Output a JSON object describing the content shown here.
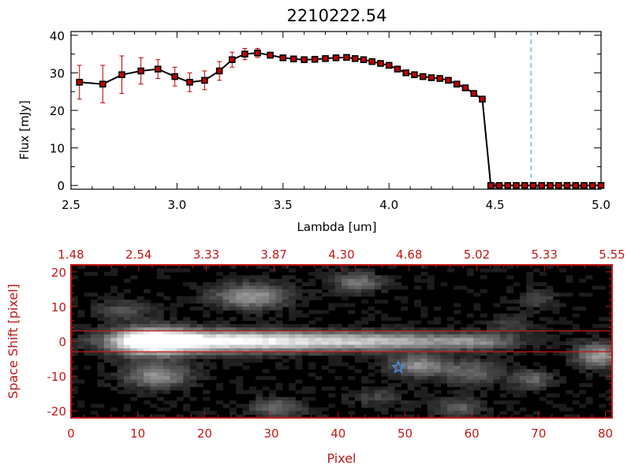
{
  "chart_data": [
    {
      "type": "line",
      "title": "2210222.54",
      "xlabel": "Lambda [um]",
      "ylabel": "Flux [mJy]",
      "xlim": [
        2.5,
        5.0
      ],
      "ylim": [
        -1,
        41
      ],
      "x_ticks": [
        "2.5",
        "3.0",
        "3.5",
        "4.0",
        "4.5",
        "5.0"
      ],
      "y_ticks": [
        "0",
        "10",
        "20",
        "30",
        "40"
      ],
      "grid": false,
      "colors": {
        "line": "#000000",
        "marker": "#c00000",
        "error": "#c00000",
        "cutoff": "#5fa8d3"
      },
      "cutoff_line_x": 4.67,
      "series": [
        {
          "x": [
            2.54,
            2.65,
            2.74,
            2.83,
            2.91,
            2.99,
            3.06,
            3.13,
            3.2,
            3.26,
            3.32,
            3.38,
            3.44,
            3.5,
            3.55,
            3.6,
            3.65,
            3.7,
            3.75,
            3.8,
            3.84,
            3.88,
            3.92,
            3.96,
            4.0,
            4.04,
            4.08,
            4.12,
            4.16,
            4.2,
            4.24,
            4.28,
            4.32,
            4.36,
            4.4,
            4.44,
            4.48,
            4.52,
            4.56,
            4.6,
            4.64,
            4.68,
            4.72,
            4.76,
            4.8,
            4.84,
            4.88,
            4.92,
            4.96,
            5.0
          ],
          "y": [
            27.5,
            27.0,
            29.5,
            30.5,
            31.0,
            29.0,
            27.5,
            28.0,
            30.5,
            33.5,
            35.0,
            35.3,
            34.7,
            34.0,
            33.7,
            33.5,
            33.6,
            33.8,
            34.0,
            34.1,
            33.8,
            33.5,
            33.0,
            32.5,
            32.0,
            31.0,
            30.0,
            29.5,
            29.0,
            28.7,
            28.5,
            28.0,
            27.0,
            26.0,
            24.5,
            23.0,
            0,
            0,
            0,
            0,
            0,
            0,
            0,
            0,
            0,
            0,
            0,
            0,
            0,
            0
          ],
          "err": [
            4.5,
            5.0,
            5.0,
            3.5,
            2.5,
            2.5,
            2.5,
            2.5,
            2.5,
            2.0,
            1.5,
            1.2,
            0.8,
            0.6,
            0.5,
            0.5,
            0.5,
            0.5,
            0.5,
            0.5,
            0.5,
            0.5,
            0.5,
            0.5,
            0.5,
            0.5,
            0.5,
            0.5,
            0.5,
            0.5,
            0.5,
            0.5,
            0.5,
            0.5,
            0.6,
            0.6,
            0,
            0,
            0,
            0,
            0,
            0,
            0,
            0,
            0,
            0,
            0,
            0,
            0,
            0
          ]
        }
      ]
    },
    {
      "type": "heatmap",
      "xlabel": "Pixel",
      "ylabel": "Space Shift [pixel]",
      "xlim": [
        0,
        81
      ],
      "ylim": [
        -22,
        22
      ],
      "x_ticks": [
        "0",
        "10",
        "20",
        "30",
        "40",
        "50",
        "60",
        "70",
        "80"
      ],
      "y_ticks": [
        "20",
        "10",
        "0",
        "-10",
        "-20"
      ],
      "top_ticks": [
        "1.48",
        "2.54",
        "3.33",
        "3.87",
        "4.30",
        "4.68",
        "5.02",
        "5.33",
        "5.55"
      ],
      "extraction_band": [
        -3,
        3
      ],
      "star_marker": {
        "x": 49,
        "y": -7.5
      },
      "colors": {
        "axes": "#c01818",
        "band": "#c01818",
        "star": "#4a90e2"
      },
      "blobs": [
        {
          "x": 12,
          "y": 0,
          "sx": 4,
          "sy": 2.6,
          "v": 1.0
        },
        {
          "x": 20,
          "y": 0,
          "sx": 9,
          "sy": 2.3,
          "v": 0.7
        },
        {
          "x": 35,
          "y": 0,
          "sx": 11,
          "sy": 2.0,
          "v": 0.55
        },
        {
          "x": 50,
          "y": 0,
          "sx": 9,
          "sy": 1.8,
          "v": 0.4
        },
        {
          "x": 61,
          "y": 0,
          "sx": 4,
          "sy": 1.6,
          "v": 0.3
        },
        {
          "x": 27,
          "y": 13,
          "sx": 4,
          "sy": 2.5,
          "v": 0.55
        },
        {
          "x": 43,
          "y": 17,
          "sx": 2.5,
          "sy": 2,
          "v": 0.4
        },
        {
          "x": 13,
          "y": -10,
          "sx": 3.5,
          "sy": 2.5,
          "v": 0.5
        },
        {
          "x": 52,
          "y": -7,
          "sx": 3,
          "sy": 2.2,
          "v": 0.5
        },
        {
          "x": 60,
          "y": -9,
          "sx": 3,
          "sy": 2.5,
          "v": 0.35
        },
        {
          "x": 69,
          "y": -11,
          "sx": 2,
          "sy": 2,
          "v": 0.35
        },
        {
          "x": 79,
          "y": -4,
          "sx": 2.5,
          "sy": 2.5,
          "v": 0.55
        },
        {
          "x": 31,
          "y": -19,
          "sx": 3,
          "sy": 2,
          "v": 0.35
        },
        {
          "x": 58,
          "y": -19,
          "sx": 2.5,
          "sy": 2,
          "v": 0.3
        },
        {
          "x": 8,
          "y": 9,
          "sx": 3,
          "sy": 2,
          "v": 0.25
        },
        {
          "x": 70,
          "y": 12,
          "sx": 2,
          "sy": 2,
          "v": 0.2
        },
        {
          "x": 46,
          "y": -16,
          "sx": 3,
          "sy": 2,
          "v": 0.2
        },
        {
          "x": 66,
          "y": 5,
          "sx": 2,
          "sy": 2,
          "v": 0.2
        }
      ]
    }
  ]
}
